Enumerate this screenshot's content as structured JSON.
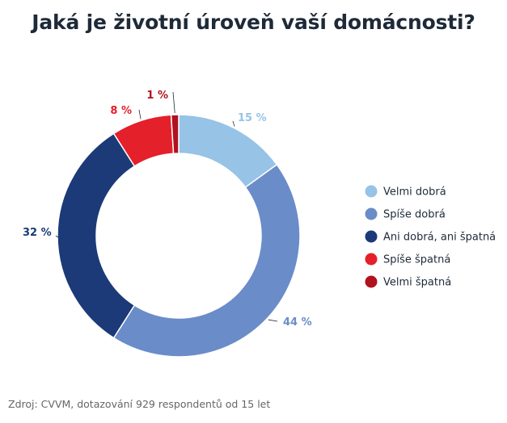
{
  "chart_data": {
    "type": "pie",
    "title": "Jaká je životní úroveň vaší domácnosti?",
    "categories": [
      "Velmi dobrá",
      "Spíše dobrá",
      "Ani dobrá, ani špatná",
      "Spíše špatná",
      "Velmi špatná"
    ],
    "values": [
      15,
      44,
      32,
      8,
      1
    ],
    "value_labels": [
      "15 %",
      "44 %",
      "32 %",
      "8 %",
      "1 %"
    ],
    "colors": [
      "#96c3e6",
      "#6a8cc8",
      "#1c3a78",
      "#e4202a",
      "#b0121e"
    ],
    "donut": true,
    "legend_position": "right"
  },
  "source": "Zdroj: CVVM, dotazování 929 respondentů od 15 let"
}
